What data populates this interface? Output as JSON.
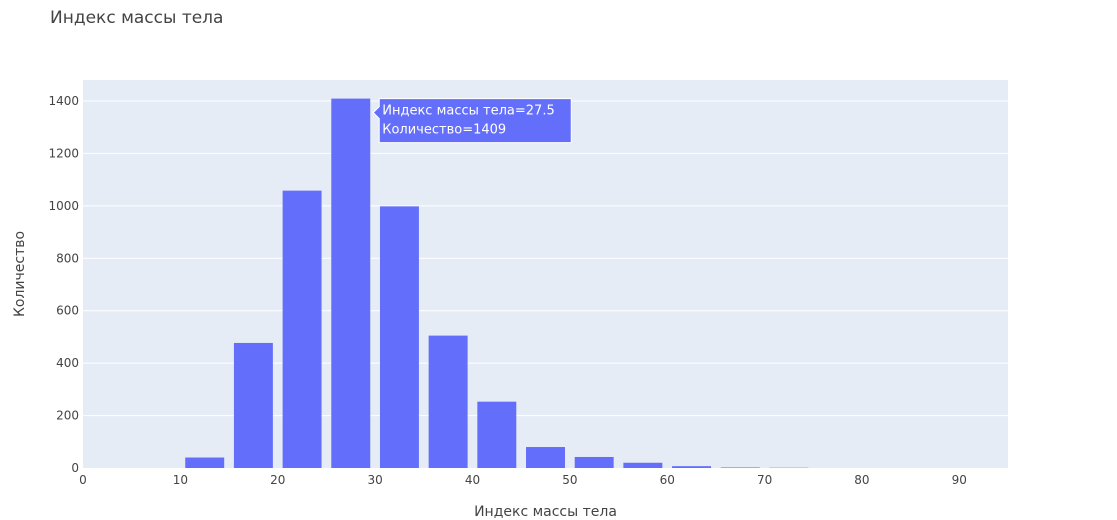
{
  "chart_data": {
    "type": "bar",
    "title": "Индекс массы тела",
    "xlabel": "Индекс массы тела",
    "ylabel": "Количество",
    "xlim": [
      0,
      95
    ],
    "ylim": [
      0,
      1480
    ],
    "xticks": [
      0,
      10,
      20,
      30,
      40,
      50,
      60,
      70,
      80,
      90
    ],
    "yticks": [
      0,
      200,
      400,
      600,
      800,
      1000,
      1200,
      1400
    ],
    "bin_width": 5,
    "bins": [
      {
        "x": 12.5,
        "y": 40
      },
      {
        "x": 17.5,
        "y": 477
      },
      {
        "x": 22.5,
        "y": 1058
      },
      {
        "x": 27.5,
        "y": 1409
      },
      {
        "x": 32.5,
        "y": 998
      },
      {
        "x": 37.5,
        "y": 505
      },
      {
        "x": 42.5,
        "y": 253
      },
      {
        "x": 47.5,
        "y": 80
      },
      {
        "x": 52.5,
        "y": 42
      },
      {
        "x": 57.5,
        "y": 20
      },
      {
        "x": 62.5,
        "y": 7
      },
      {
        "x": 67.5,
        "y": 2
      },
      {
        "x": 72.5,
        "y": 1
      }
    ],
    "grid": true,
    "bar_color": "#636efa",
    "plot_bg": "#e5ecf6",
    "hover": {
      "x_value": 27.5,
      "line1": "Индекс массы тела=27.5",
      "line2": "Количество=1409"
    }
  }
}
